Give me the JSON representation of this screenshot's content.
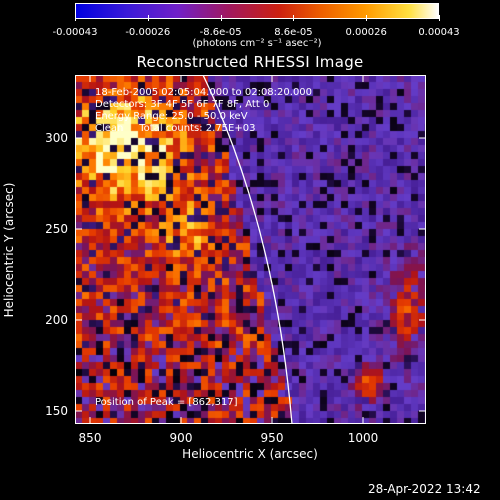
{
  "colorbar": {
    "ticks": [
      "-0.00043",
      "-0.00026",
      "-8.6e-05",
      "8.6e-05",
      "0.00026",
      "0.00043"
    ],
    "units": "(photons cm⁻² s⁻¹ asec⁻²)"
  },
  "plot": {
    "title": "Reconstructed RHESSI Image",
    "info_lines": [
      "18-Feb-2005 02:05:04.000 to 02:08:20.000",
      "Detectors: 3F 4F 5F 6F 7F 8F, Att 0",
      "Energy Range: 25.0 - 50.0 keV",
      "Clean     Total counts: 2.75E+03"
    ],
    "peak_label": "Position of Peak = [862,317]",
    "xlabel": "Heliocentric X (arcsec)",
    "ylabel": "Heliocentric Y (arcsec)",
    "xticks": [
      "850",
      "900",
      "950",
      "1000"
    ],
    "yticks": [
      "300",
      "250",
      "200",
      "150"
    ]
  },
  "timestamp": "28-Apr-2022 13:42",
  "colors": {
    "background": "#000000",
    "text": "#ffffff",
    "limb": "#ffffff"
  }
}
